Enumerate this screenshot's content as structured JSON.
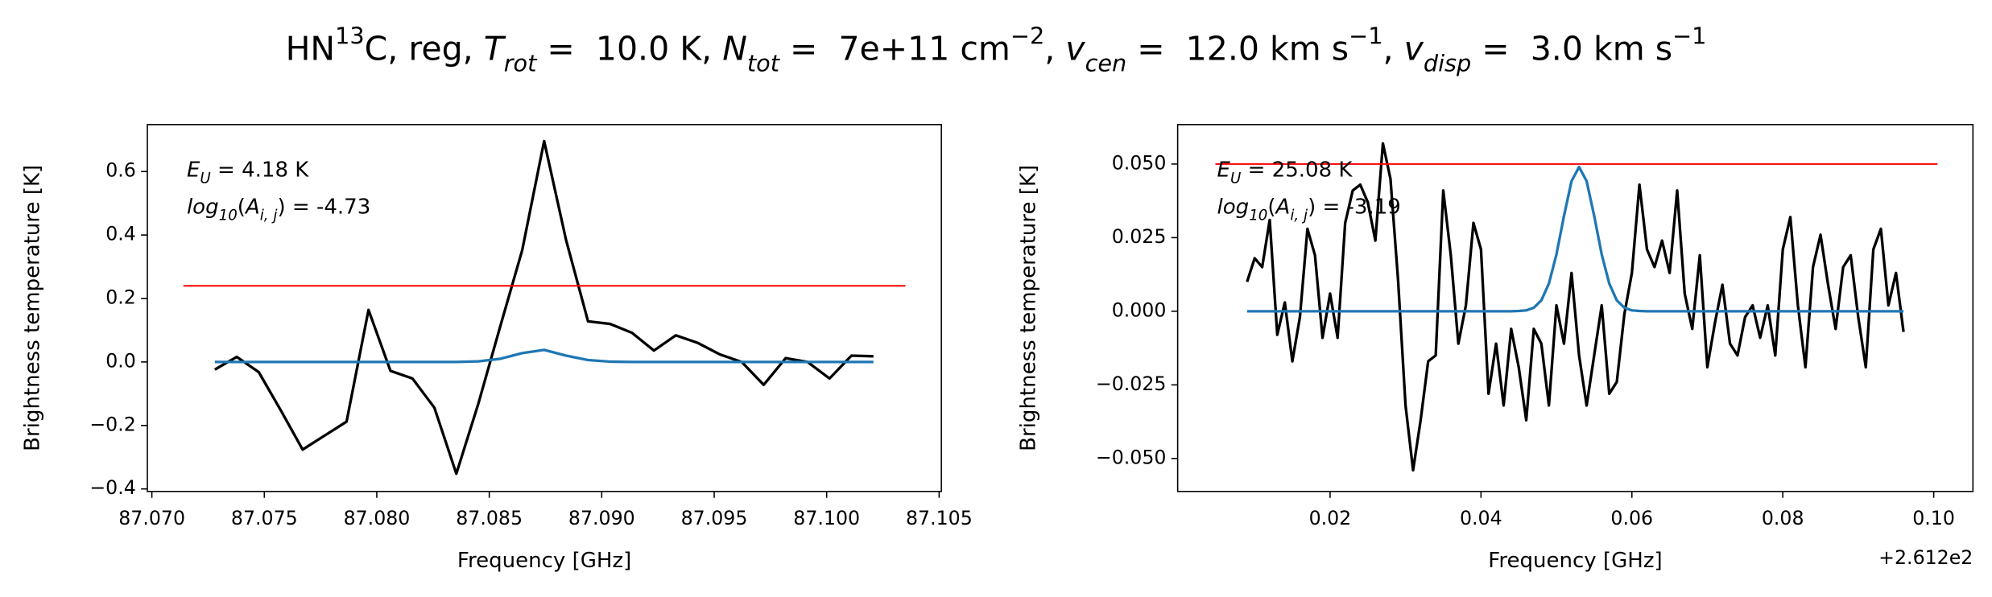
{
  "title": [
    {
      "text": "HN"
    },
    {
      "text": "13",
      "style": "sup"
    },
    {
      "text": "C, reg, "
    },
    {
      "text": "T",
      "style": "italic"
    },
    {
      "text": "rot",
      "style": "sub-italic"
    },
    {
      "text": " =  10.0 K, "
    },
    {
      "text": "N",
      "style": "italic"
    },
    {
      "text": "tot",
      "style": "sub-italic"
    },
    {
      "text": " =  7e+11 cm"
    },
    {
      "text": "−2",
      "style": "sup"
    },
    {
      "text": ", "
    },
    {
      "text": "v",
      "style": "italic"
    },
    {
      "text": "cen",
      "style": "sub-italic"
    },
    {
      "text": " =  12.0 km s"
    },
    {
      "text": "−1",
      "style": "sup"
    },
    {
      "text": ", "
    },
    {
      "text": "v",
      "style": "italic"
    },
    {
      "text": "disp",
      "style": "sub-italic"
    },
    {
      "text": " =  3.0 km s"
    },
    {
      "text": "−1",
      "style": "sup"
    }
  ],
  "chart_data": [
    {
      "type": "line",
      "xlabel": "Frequency [GHz]",
      "ylabel": "Brightness temperature [K]",
      "xlim": [
        87.0698,
        87.1051
      ],
      "ylim": [
        -0.408,
        0.748
      ],
      "xticks": [
        {
          "value": 87.07,
          "label": "87.070"
        },
        87.075,
        {
          "value": 87.08,
          "label": "87.080"
        },
        87.085,
        {
          "value": 87.09,
          "label": "87.090"
        },
        87.095,
        {
          "value": 87.1,
          "label": "87.100"
        },
        87.105
      ],
      "yticks": [
        {
          "value": -0.4,
          "label": "−0.4"
        },
        {
          "value": -0.2,
          "label": "−0.2"
        },
        {
          "value": 0,
          "label": "0.0"
        },
        0.2,
        0.4,
        0.6
      ],
      "annotations": [
        [
          {
            "text": "E",
            "style": "italic"
          },
          {
            "text": "U",
            "style": "sub-italic"
          },
          {
            "text": " = 4.18 K"
          }
        ],
        [
          {
            "text": "log",
            "style": "italic"
          },
          {
            "text": "10",
            "style": "sub-italic"
          },
          {
            "text": "("
          },
          {
            "text": "A",
            "style": "italic"
          },
          {
            "text": "i, j",
            "style": "sub-italic"
          },
          {
            "text": ") = -4.73"
          }
        ]
      ],
      "series": [
        {
          "color": "#000000",
          "x": [
            87.0728,
            87.073776,
            87.074752,
            87.075728,
            87.076704,
            87.07768,
            87.078656,
            87.079632,
            87.080608,
            87.081584,
            87.08256,
            87.083536,
            87.084512,
            87.085488,
            87.086464,
            87.08744,
            87.088416,
            87.089392,
            87.090368,
            87.091344,
            87.09232,
            87.093296,
            87.094272,
            87.095248,
            87.096224,
            87.0972,
            87.098176,
            87.099152,
            87.100128,
            87.101104,
            87.10208
          ],
          "values": [
            -0.024,
            0.016,
            -0.032,
            -0.152,
            -0.276,
            -0.232,
            -0.188,
            0.164,
            -0.028,
            -0.052,
            -0.144,
            -0.352,
            -0.132,
            0.112,
            0.352,
            0.696,
            0.384,
            0.128,
            0.12,
            0.092,
            0.036,
            0.084,
            0.06,
            0.024,
            0.0,
            -0.072,
            0.012,
            0.0,
            -0.052,
            0.02,
            0.018
          ]
        },
        {
          "color": "#1f77b4",
          "x": [
            87.0728,
            87.073776,
            87.074752,
            87.075728,
            87.076704,
            87.07768,
            87.078656,
            87.079632,
            87.080608,
            87.081584,
            87.08256,
            87.083536,
            87.084512,
            87.085488,
            87.086464,
            87.08744,
            87.088416,
            87.089392,
            87.090368,
            87.091344,
            87.09232,
            87.093296,
            87.094272,
            87.095248,
            87.096224,
            87.0972,
            87.098176,
            87.099152,
            87.100128,
            87.101104,
            87.10208
          ],
          "values": [
            0,
            0,
            0,
            0,
            0,
            0,
            0,
            0,
            0,
            0,
            0,
            0,
            0.002,
            0.01,
            0.028,
            0.038,
            0.02,
            0.006,
            0.001,
            0,
            0,
            0,
            0,
            0,
            0,
            0,
            0,
            0,
            0,
            0,
            0
          ]
        },
        {
          "color": "#ff0000",
          "x": [
            87.0714,
            87.1035
          ],
          "values": [
            0.24,
            0.24
          ]
        }
      ]
    },
    {
      "type": "line",
      "xlabel": "Frequency [GHz]",
      "ylabel": "Brightness temperature [K]",
      "x_offset": "+2.612e2",
      "xlim": [
        261.1998,
        261.3052
      ],
      "ylim": [
        -0.0612,
        0.0634
      ],
      "xticks": [
        {
          "value": 261.22,
          "label": "0.02"
        },
        {
          "value": 261.24,
          "label": "0.04"
        },
        {
          "value": 261.26,
          "label": "0.06"
        },
        {
          "value": 261.28,
          "label": "0.08"
        },
        {
          "value": 261.3,
          "label": "0.10"
        }
      ],
      "yticks": [
        {
          "value": -0.05,
          "label": "−0.050"
        },
        {
          "value": -0.025,
          "label": "−0.025"
        },
        {
          "value": 0,
          "label": "0.000"
        },
        0.025,
        {
          "value": 0.05,
          "label": "0.050"
        }
      ],
      "annotations": [
        [
          {
            "text": "E",
            "style": "italic"
          },
          {
            "text": "U",
            "style": "sub-italic"
          },
          {
            "text": " = 25.08 K"
          }
        ],
        [
          {
            "text": "log",
            "style": "italic"
          },
          {
            "text": "10",
            "style": "sub-italic"
          },
          {
            "text": "("
          },
          {
            "text": "A",
            "style": "italic"
          },
          {
            "text": "i, j",
            "style": "sub-italic"
          },
          {
            "text": ") = -3.19"
          }
        ]
      ],
      "series": [
        {
          "color": "#000000",
          "x": [
            261.209,
            261.21,
            261.211,
            261.212,
            261.213,
            261.214,
            261.215,
            261.216,
            261.217,
            261.218,
            261.219,
            261.22,
            261.221,
            261.222,
            261.223,
            261.224,
            261.225,
            261.226,
            261.227,
            261.228,
            261.229,
            261.23,
            261.231,
            261.232,
            261.233,
            261.234,
            261.235,
            261.236,
            261.237,
            261.238,
            261.239,
            261.24,
            261.241,
            261.242,
            261.243,
            261.244,
            261.245,
            261.246,
            261.247,
            261.248,
            261.249,
            261.25,
            261.251,
            261.252,
            261.253,
            261.254,
            261.255,
            261.256,
            261.257,
            261.258,
            261.259,
            261.26,
            261.261,
            261.262,
            261.263,
            261.264,
            261.265,
            261.266,
            261.267,
            261.268,
            261.269,
            261.27,
            261.271,
            261.272,
            261.273,
            261.274,
            261.275,
            261.276,
            261.277,
            261.278,
            261.279,
            261.28,
            261.281,
            261.282,
            261.283,
            261.284,
            261.285,
            261.286,
            261.287,
            261.288,
            261.289,
            261.29,
            261.291,
            261.292,
            261.293,
            261.294,
            261.295,
            261.296
          ],
          "values": [
            0.01,
            0.018,
            0.015,
            0.031,
            -0.008,
            0.003,
            -0.017,
            -0.002,
            0.028,
            0.019,
            -0.009,
            0.006,
            -0.009,
            0.03,
            0.041,
            0.043,
            0.037,
            0.024,
            0.057,
            0.045,
            0.011,
            -0.032,
            -0.054,
            -0.037,
            -0.017,
            -0.015,
            0.041,
            0.019,
            -0.011,
            0.002,
            0.03,
            0.021,
            -0.028,
            -0.011,
            -0.032,
            -0.006,
            -0.019,
            -0.037,
            -0.006,
            -0.011,
            -0.032,
            0.002,
            -0.011,
            0.013,
            -0.015,
            -0.032,
            -0.015,
            0.002,
            -0.028,
            -0.024,
            -0.001,
            0.013,
            0.043,
            0.021,
            0.015,
            0.024,
            0.013,
            0.041,
            0.006,
            -0.006,
            0.019,
            -0.019,
            -0.004,
            0.009,
            -0.011,
            -0.015,
            -0.002,
            0.002,
            -0.009,
            0.002,
            -0.015,
            0.021,
            0.032,
            0.002,
            -0.019,
            0.015,
            0.026,
            0.009,
            -0.006,
            0.015,
            0.019,
            -0.002,
            -0.019,
            0.021,
            0.028,
            0.002,
            0.013,
            -0.007
          ]
        },
        {
          "color": "#1f77b4",
          "x": [
            261.209,
            261.21,
            261.211,
            261.212,
            261.213,
            261.214,
            261.215,
            261.216,
            261.217,
            261.218,
            261.219,
            261.22,
            261.221,
            261.222,
            261.223,
            261.224,
            261.225,
            261.226,
            261.227,
            261.228,
            261.229,
            261.23,
            261.231,
            261.232,
            261.233,
            261.234,
            261.235,
            261.236,
            261.237,
            261.238,
            261.239,
            261.24,
            261.241,
            261.242,
            261.243,
            261.244,
            261.245,
            261.246,
            261.247,
            261.248,
            261.249,
            261.25,
            261.251,
            261.252,
            261.253,
            261.254,
            261.255,
            261.256,
            261.257,
            261.258,
            261.259,
            261.26,
            261.261,
            261.262,
            261.263,
            261.264,
            261.265,
            261.266,
            261.267,
            261.268,
            261.269,
            261.27,
            261.271,
            261.272,
            261.273,
            261.274,
            261.275,
            261.276,
            261.277,
            261.278,
            261.279,
            261.28,
            261.281,
            261.282,
            261.283,
            261.284,
            261.285,
            261.286,
            261.287,
            261.288,
            261.289,
            261.29,
            261.291,
            261.292,
            261.293,
            261.294,
            261.295,
            261.296
          ],
          "values": [
            0,
            0,
            0,
            0,
            0,
            0,
            0,
            0,
            0,
            0,
            0,
            0,
            0,
            0,
            0,
            0,
            0,
            0,
            0,
            0,
            0,
            0,
            0,
            0,
            0,
            0,
            0,
            0,
            0,
            0,
            0,
            0,
            0,
            0,
            0,
            0,
            0.0001,
            0.0003,
            0.0012,
            0.0037,
            0.0094,
            0.0193,
            0.0324,
            0.0442,
            0.049,
            0.0442,
            0.0324,
            0.0193,
            0.0094,
            0.0037,
            0.0012,
            0.0003,
            0.0001,
            0,
            0,
            0,
            0,
            0,
            0,
            0,
            0,
            0,
            0,
            0,
            0,
            0,
            0,
            0,
            0,
            0,
            0,
            0,
            0,
            0,
            0,
            0,
            0,
            0,
            0,
            0,
            0,
            0,
            0,
            0,
            0,
            0,
            0,
            0
          ]
        },
        {
          "color": "#ff0000",
          "x": [
            261.2048,
            261.3005
          ],
          "values": [
            0.05,
            0.05
          ]
        }
      ]
    }
  ]
}
